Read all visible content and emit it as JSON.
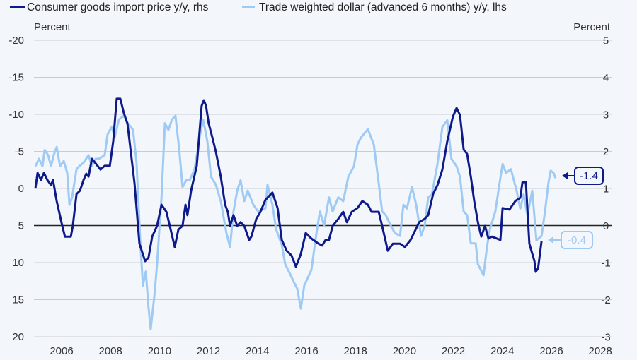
{
  "chart_data": {
    "type": "line",
    "title": "",
    "legend": [
      "Consumer goods import price y/y, rhs",
      "Trade weighted dollar (advanced 6 months) y/y, lhs"
    ],
    "legend_placement": "top-left",
    "ylabel_left": "Percent",
    "ylabel_right": "Percent",
    "left_axis": {
      "range": [
        -20,
        20
      ],
      "inverted": true,
      "ticks": [
        "-20",
        "-15",
        "-10",
        "-5",
        "0",
        "5",
        "10",
        "15",
        "20"
      ],
      "values": [
        -20,
        -15,
        -10,
        -5,
        0,
        5,
        10,
        15,
        20
      ]
    },
    "right_axis": {
      "range": [
        -3,
        5
      ],
      "ticks": [
        "5",
        "4",
        "3",
        "2",
        "1",
        "0",
        "-1",
        "-2",
        "-3"
      ],
      "values": [
        5,
        4,
        3,
        2,
        1,
        0,
        -1,
        -2,
        -3
      ]
    },
    "x_axis": {
      "range": [
        2004.9,
        2028.5
      ],
      "ticks": [
        "2006",
        "2008",
        "2010",
        "2012",
        "2014",
        "2016",
        "2018",
        "2020",
        "2022",
        "2024",
        "2026",
        "2028"
      ],
      "values": [
        2006,
        2008,
        2010,
        2012,
        2014,
        2016,
        2018,
        2020,
        2022,
        2024,
        2026,
        2028
      ]
    },
    "grid": true,
    "colors": {
      "dark": "#0f1a8a",
      "light": "#9fcaf4",
      "background": "#f3f6fb"
    },
    "annotations": [
      {
        "text": "-1.4",
        "series": "light"
      },
      {
        "text": "-0.4",
        "series": "dark"
      }
    ],
    "series": [
      {
        "name": "Consumer goods import price y/y, rhs",
        "axis": "right",
        "color": "dark",
        "points": [
          [
            2004.93,
            1.01
          ],
          [
            2005.02,
            1.43
          ],
          [
            2005.16,
            1.24
          ],
          [
            2005.28,
            1.43
          ],
          [
            2005.42,
            1.24
          ],
          [
            2005.57,
            1.1
          ],
          [
            2005.65,
            1.24
          ],
          [
            2005.8,
            0.67
          ],
          [
            2006.03,
            0
          ],
          [
            2006.14,
            -0.29
          ],
          [
            2006.38,
            -0.29
          ],
          [
            2006.46,
            0
          ],
          [
            2006.61,
            0.86
          ],
          [
            2006.75,
            0.95
          ],
          [
            2006.9,
            1.24
          ],
          [
            2007.01,
            1.41
          ],
          [
            2007.1,
            1.33
          ],
          [
            2007.24,
            1.81
          ],
          [
            2007.47,
            1.62
          ],
          [
            2007.59,
            1.52
          ],
          [
            2007.76,
            1.62
          ],
          [
            2007.97,
            1.62
          ],
          [
            2008.11,
            2.29
          ],
          [
            2008.25,
            3.43
          ],
          [
            2008.4,
            3.43
          ],
          [
            2008.54,
            3.05
          ],
          [
            2008.69,
            2.76
          ],
          [
            2008.98,
            1.14
          ],
          [
            2009.18,
            -0.48
          ],
          [
            2009.41,
            -0.95
          ],
          [
            2009.55,
            -0.86
          ],
          [
            2009.7,
            -0.29
          ],
          [
            2009.9,
            0
          ],
          [
            2010.08,
            0.57
          ],
          [
            2010.28,
            0.38
          ],
          [
            2010.42,
            0
          ],
          [
            2010.62,
            -0.57
          ],
          [
            2010.77,
            -0.1
          ],
          [
            2010.94,
            0
          ],
          [
            2011.06,
            0.57
          ],
          [
            2011.14,
            0.29
          ],
          [
            2011.29,
            0.95
          ],
          [
            2011.52,
            1.62
          ],
          [
            2011.72,
            3.24
          ],
          [
            2011.81,
            3.39
          ],
          [
            2011.9,
            3.24
          ],
          [
            2012.01,
            2.76
          ],
          [
            2012.16,
            2.38
          ],
          [
            2012.3,
            2.0
          ],
          [
            2012.5,
            1.33
          ],
          [
            2012.68,
            0.57
          ],
          [
            2012.79,
            0.38
          ],
          [
            2012.88,
            0
          ],
          [
            2013.02,
            0.29
          ],
          [
            2013.17,
            0
          ],
          [
            2013.31,
            0.1
          ],
          [
            2013.46,
            0
          ],
          [
            2013.66,
            -0.38
          ],
          [
            2013.75,
            -0.29
          ],
          [
            2013.95,
            0.19
          ],
          [
            2014.12,
            0.38
          ],
          [
            2014.32,
            0.7
          ],
          [
            2014.61,
            0.9
          ],
          [
            2014.82,
            0.48
          ],
          [
            2014.99,
            -0.38
          ],
          [
            2015.19,
            -0.67
          ],
          [
            2015.39,
            -0.8
          ],
          [
            2015.57,
            -1.1
          ],
          [
            2015.77,
            -0.76
          ],
          [
            2015.97,
            -0.19
          ],
          [
            2016.2,
            -0.34
          ],
          [
            2016.49,
            -0.48
          ],
          [
            2016.64,
            -0.53
          ],
          [
            2016.78,
            -0.38
          ],
          [
            2016.92,
            -0.38
          ],
          [
            2017.07,
            0
          ],
          [
            2017.3,
            0.19
          ],
          [
            2017.5,
            0.38
          ],
          [
            2017.65,
            0.1
          ],
          [
            2017.85,
            0.38
          ],
          [
            2018.08,
            0.48
          ],
          [
            2018.28,
            0.67
          ],
          [
            2018.51,
            0.57
          ],
          [
            2018.66,
            0.38
          ],
          [
            2018.95,
            0.38
          ],
          [
            2019.09,
            0
          ],
          [
            2019.32,
            -0.67
          ],
          [
            2019.53,
            -0.48
          ],
          [
            2019.82,
            -0.48
          ],
          [
            2020.02,
            -0.57
          ],
          [
            2020.25,
            -0.38
          ],
          [
            2020.39,
            -0.19
          ],
          [
            2020.6,
            0.1
          ],
          [
            2020.83,
            0.19
          ],
          [
            2020.97,
            0.29
          ],
          [
            2021.17,
            0.86
          ],
          [
            2021.35,
            1.1
          ],
          [
            2021.55,
            1.52
          ],
          [
            2021.75,
            2.29
          ],
          [
            2021.98,
            2.95
          ],
          [
            2022.13,
            3.18
          ],
          [
            2022.27,
            2.99
          ],
          [
            2022.42,
            2.06
          ],
          [
            2022.56,
            1.94
          ],
          [
            2022.71,
            1.33
          ],
          [
            2022.85,
            0.67
          ],
          [
            2023.0,
            0.1
          ],
          [
            2023.14,
            -0.29
          ],
          [
            2023.29,
            0
          ],
          [
            2023.43,
            -0.34
          ],
          [
            2023.57,
            -0.29
          ],
          [
            2023.92,
            -0.38
          ],
          [
            2024.01,
            0.48
          ],
          [
            2024.29,
            0.44
          ],
          [
            2024.53,
            0.67
          ],
          [
            2024.73,
            0.76
          ],
          [
            2024.82,
            1.18
          ],
          [
            2024.96,
            1.18
          ],
          [
            2025.1,
            -0.48
          ],
          [
            2025.31,
            -0.95
          ],
          [
            2025.36,
            -1.24
          ],
          [
            2025.46,
            -1.14
          ],
          [
            2025.6,
            -0.4
          ]
        ]
      },
      {
        "name": "Trade weighted dollar (advanced 6 months) y/y, lhs",
        "axis": "left",
        "color": "light",
        "points": [
          [
            2004.93,
            -3.0
          ],
          [
            2005.08,
            -4.0
          ],
          [
            2005.22,
            -3.0
          ],
          [
            2005.31,
            -5.2
          ],
          [
            2005.45,
            -4.5
          ],
          [
            2005.57,
            -3.0
          ],
          [
            2005.68,
            -4.5
          ],
          [
            2005.8,
            -5.6
          ],
          [
            2005.94,
            -3.0
          ],
          [
            2006.09,
            -3.7
          ],
          [
            2006.23,
            -2.1
          ],
          [
            2006.32,
            2.2
          ],
          [
            2006.43,
            1.2
          ],
          [
            2006.61,
            -2.6
          ],
          [
            2006.72,
            -3.0
          ],
          [
            2006.9,
            -3.5
          ],
          [
            2007.1,
            -4.5
          ],
          [
            2007.24,
            -3.0
          ],
          [
            2007.39,
            -4.0
          ],
          [
            2007.53,
            -4.0
          ],
          [
            2007.76,
            -4.5
          ],
          [
            2007.88,
            -7.3
          ],
          [
            2008.05,
            -8.3
          ],
          [
            2008.17,
            -6.9
          ],
          [
            2008.34,
            -9.3
          ],
          [
            2008.54,
            -9.8
          ],
          [
            2008.69,
            -8.9
          ],
          [
            2008.92,
            -7.9
          ],
          [
            2009.06,
            -3.5
          ],
          [
            2009.21,
            7.0
          ],
          [
            2009.32,
            13.1
          ],
          [
            2009.44,
            11.2
          ],
          [
            2009.55,
            16.0
          ],
          [
            2009.64,
            19.0
          ],
          [
            2009.79,
            14.5
          ],
          [
            2009.9,
            10.2
          ],
          [
            2010.08,
            1.2
          ],
          [
            2010.22,
            -8.8
          ],
          [
            2010.36,
            -7.9
          ],
          [
            2010.51,
            -9.3
          ],
          [
            2010.65,
            -9.8
          ],
          [
            2010.8,
            -5.4
          ],
          [
            2010.94,
            -0.2
          ],
          [
            2011.09,
            -1.1
          ],
          [
            2011.23,
            -1.1
          ],
          [
            2011.43,
            -2.6
          ],
          [
            2011.66,
            -7.3
          ],
          [
            2011.78,
            -9.3
          ],
          [
            2011.95,
            -6.4
          ],
          [
            2012.1,
            -1.6
          ],
          [
            2012.3,
            -0.5
          ],
          [
            2012.5,
            1.7
          ],
          [
            2012.73,
            6.0
          ],
          [
            2012.88,
            7.9
          ],
          [
            2013.02,
            3.1
          ],
          [
            2013.17,
            0.3
          ],
          [
            2013.31,
            -1.1
          ],
          [
            2013.46,
            1.7
          ],
          [
            2013.6,
            0.3
          ],
          [
            2013.83,
            2.2
          ],
          [
            2014.03,
            3.1
          ],
          [
            2014.32,
            2.7
          ],
          [
            2014.41,
            -0.5
          ],
          [
            2014.61,
            2.2
          ],
          [
            2014.76,
            5.5
          ],
          [
            2014.99,
            7.6
          ],
          [
            2015.13,
            10.2
          ],
          [
            2015.34,
            11.6
          ],
          [
            2015.48,
            12.6
          ],
          [
            2015.62,
            13.5
          ],
          [
            2015.77,
            16.2
          ],
          [
            2015.91,
            13.1
          ],
          [
            2016.2,
            11.0
          ],
          [
            2016.43,
            5.5
          ],
          [
            2016.55,
            3.1
          ],
          [
            2016.72,
            5.0
          ],
          [
            2016.92,
            1.2
          ],
          [
            2017.07,
            3.1
          ],
          [
            2017.3,
            1.2
          ],
          [
            2017.5,
            1.7
          ],
          [
            2017.71,
            -1.6
          ],
          [
            2017.94,
            -3.0
          ],
          [
            2018.08,
            -5.9
          ],
          [
            2018.23,
            -6.9
          ],
          [
            2018.51,
            -8.0
          ],
          [
            2018.75,
            -5.9
          ],
          [
            2018.95,
            -0.7
          ],
          [
            2019.09,
            3.1
          ],
          [
            2019.24,
            3.6
          ],
          [
            2019.44,
            5.0
          ],
          [
            2019.61,
            6.0
          ],
          [
            2019.82,
            6.4
          ],
          [
            2019.96,
            2.2
          ],
          [
            2020.1,
            2.7
          ],
          [
            2020.31,
            -0.2
          ],
          [
            2020.48,
            2.2
          ],
          [
            2020.68,
            6.4
          ],
          [
            2020.83,
            5.0
          ],
          [
            2020.97,
            1.2
          ],
          [
            2021.12,
            0.8
          ],
          [
            2021.35,
            -3.3
          ],
          [
            2021.55,
            -8.3
          ],
          [
            2021.75,
            -9.2
          ],
          [
            2021.92,
            -4.0
          ],
          [
            2022.13,
            -3.0
          ],
          [
            2022.27,
            -1.6
          ],
          [
            2022.42,
            3.1
          ],
          [
            2022.56,
            3.6
          ],
          [
            2022.71,
            7.4
          ],
          [
            2022.91,
            7.4
          ],
          [
            2023.0,
            10.2
          ],
          [
            2023.23,
            11.7
          ],
          [
            2023.37,
            7.9
          ],
          [
            2023.49,
            5.5
          ],
          [
            2023.71,
            3.1
          ],
          [
            2023.86,
            -0.2
          ],
          [
            2024.01,
            -3.3
          ],
          [
            2024.15,
            -2.1
          ],
          [
            2024.35,
            -2.6
          ],
          [
            2024.58,
            0.3
          ],
          [
            2024.73,
            2.7
          ],
          [
            2024.87,
            0.8
          ],
          [
            2025.02,
            3.6
          ],
          [
            2025.22,
            0.3
          ],
          [
            2025.39,
            7.0
          ],
          [
            2025.6,
            6.4
          ],
          [
            2025.74,
            3.1
          ],
          [
            2025.88,
            -0.7
          ],
          [
            2025.97,
            -2.4
          ],
          [
            2026.09,
            -2.1
          ],
          [
            2026.17,
            -1.4
          ]
        ]
      }
    ]
  }
}
